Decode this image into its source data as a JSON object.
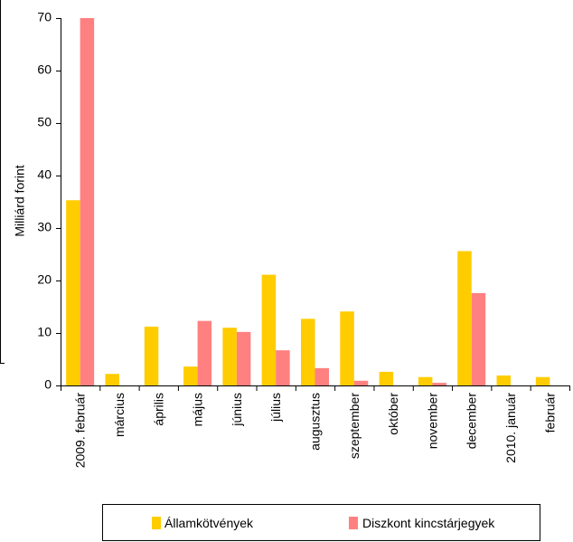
{
  "chart_data": {
    "type": "bar",
    "title": "",
    "xlabel": "",
    "ylabel": "Milliárd forint",
    "ylim": [
      0,
      70
    ],
    "yticks": [
      0,
      10,
      20,
      30,
      40,
      50,
      60,
      70
    ],
    "grid": false,
    "legend_position": "bottom",
    "categories": [
      "2009. február",
      "március",
      "április",
      "május",
      "június",
      "július",
      "augusztus",
      "szeptember",
      "október",
      "november",
      "december",
      "2010. január",
      "február"
    ],
    "series": [
      {
        "name": "Államkötvények",
        "color": "#FFCC00",
        "values": [
          35.3,
          2.2,
          11.2,
          3.6,
          11.0,
          21.1,
          12.7,
          14.1,
          2.6,
          1.6,
          25.6,
          1.9,
          1.6
        ]
      },
      {
        "name": "Diszkont kincstárjegyek",
        "color": "#FF8080",
        "values": [
          70.0,
          0,
          0,
          12.3,
          10.2,
          6.7,
          3.3,
          0.9,
          0,
          0.5,
          17.6,
          0,
          0
        ]
      }
    ]
  }
}
